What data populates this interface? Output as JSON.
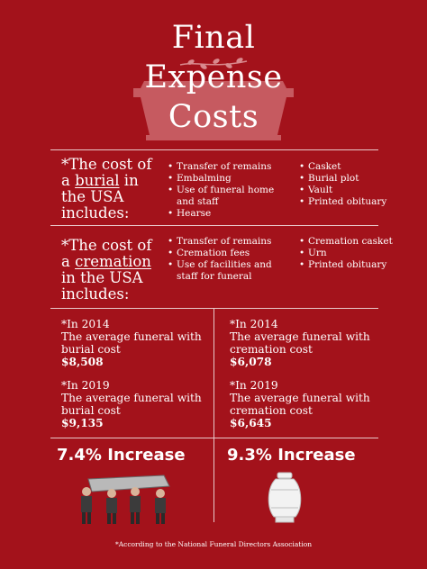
{
  "title": {
    "line1": "Final",
    "line2": "Expense",
    "line3": "Costs"
  },
  "burial": {
    "heading_prefix": "*The cost of a ",
    "heading_keyword": "burial",
    "heading_suffix": " in the USA includes:",
    "items_col1": [
      "Transfer of remains",
      "Embalming",
      "Use of funeral home and staff",
      "Hearse"
    ],
    "items_col2": [
      "Casket",
      "Burial plot",
      "Vault",
      "Printed obituary"
    ]
  },
  "cremation": {
    "heading_prefix": "*The cost of a ",
    "heading_keyword": "cremation",
    "heading_suffix": " in the USA includes:",
    "items_col1": [
      "Transfer of remains",
      "Cremation fees",
      "Use of facilities and staff for funeral"
    ],
    "items_col2": [
      "Cremation casket",
      "Urn",
      "Printed obituary"
    ]
  },
  "stats": {
    "burial_2014": {
      "year": "*In 2014",
      "desc": "The average funeral with burial cost",
      "amount": "$8,508"
    },
    "burial_2019": {
      "year": "*In 2019",
      "desc": "The average funeral with burial cost",
      "amount": "$9,135"
    },
    "cremation_2014": {
      "year": "*In 2014",
      "desc": "The average funeral with cremation  cost",
      "amount": "$6,078"
    },
    "cremation_2019": {
      "year": "*In 2019",
      "desc": "The average funeral with cremation cost",
      "amount": "$6,645"
    }
  },
  "increase": {
    "burial": "7.4% Increase",
    "cremation": "9.3% Increase"
  },
  "footnote": "*According to the National Funeral Directors Association",
  "colors": {
    "background": "#a3121b",
    "text": "#ffffff",
    "casket_graphic": "#c65a60"
  },
  "icons": [
    "casket-graphic",
    "pallbearers-icon",
    "urn-icon",
    "flower-branch-icon"
  ]
}
